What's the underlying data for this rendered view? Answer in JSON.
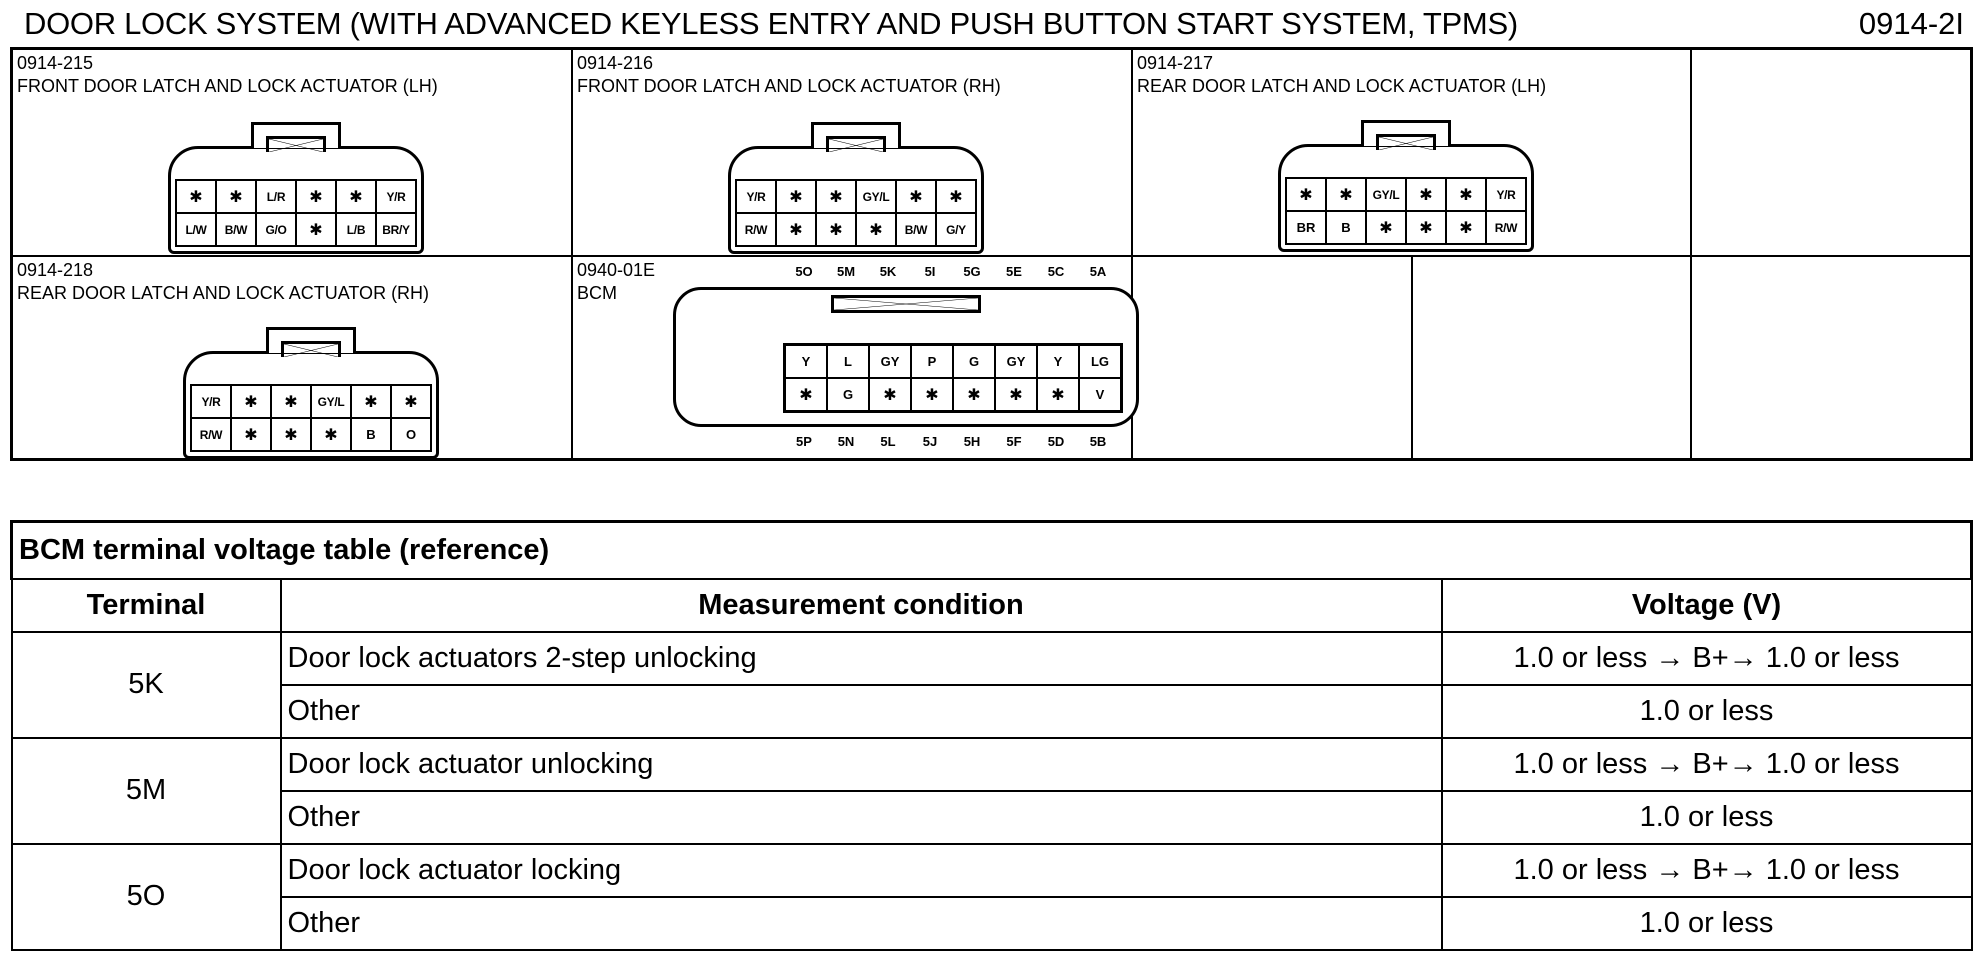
{
  "header": {
    "title": "DOOR LOCK SYSTEM (WITH ADVANCED KEYLESS ENTRY AND PUSH BUTTON START SYSTEM, TPMS)",
    "code": "0914-2I"
  },
  "connectors": [
    {
      "id": "0914-215",
      "name": "FRONT DOOR LATCH AND LOCK ACTUATOR (LH)",
      "rows": [
        [
          "*",
          "*",
          "L/R",
          "*",
          "*",
          "Y/R"
        ],
        [
          "L/W",
          "B/W",
          "G/O",
          "*",
          "L/B",
          "BR/Y"
        ]
      ]
    },
    {
      "id": "0914-216",
      "name": "FRONT DOOR LATCH AND LOCK ACTUATOR (RH)",
      "rows": [
        [
          "Y/R",
          "*",
          "*",
          "GY/L",
          "*",
          "*"
        ],
        [
          "R/W",
          "*",
          "*",
          "*",
          "B/W",
          "G/Y"
        ]
      ]
    },
    {
      "id": "0914-217",
      "name": "REAR DOOR LATCH AND LOCK ACTUATOR (LH)",
      "rows": [
        [
          "*",
          "*",
          "GY/L",
          "*",
          "*",
          "Y/R"
        ],
        [
          "BR",
          "B",
          "*",
          "*",
          "*",
          "R/W"
        ]
      ]
    },
    {
      "id": "0914-218",
      "name": "REAR DOOR LATCH AND LOCK ACTUATOR (RH)",
      "rows": [
        [
          "Y/R",
          "*",
          "*",
          "GY/L",
          "*",
          "*"
        ],
        [
          "R/W",
          "*",
          "*",
          "*",
          "B",
          "O"
        ]
      ]
    }
  ],
  "bcm": {
    "id": "0940-01E",
    "name": "BCM",
    "top_pins": [
      "5O",
      "5M",
      "5K",
      "5I",
      "5G",
      "5E",
      "5C",
      "5A"
    ],
    "bottom_pins": [
      "5P",
      "5N",
      "5L",
      "5J",
      "5H",
      "5F",
      "5D",
      "5B"
    ],
    "rows": [
      [
        "Y",
        "L",
        "GY",
        "P",
        "G",
        "GY",
        "Y",
        "LG"
      ],
      [
        "*",
        "G",
        "*",
        "*",
        "*",
        "*",
        "*",
        "V"
      ]
    ]
  },
  "table": {
    "title": "BCM terminal voltage table (reference)",
    "headers": [
      "Terminal",
      "Measurement condition",
      "Voltage (V)"
    ],
    "groups": [
      {
        "terminal": "5K",
        "rows": [
          {
            "condition": "Door lock actuators 2-step unlocking",
            "voltage": "1.0 or less → B+→ 1.0 or less"
          },
          {
            "condition": "Other",
            "voltage": "1.0 or less"
          }
        ]
      },
      {
        "terminal": "5M",
        "rows": [
          {
            "condition": "Door lock actuator unlocking",
            "voltage": "1.0 or less → B+→ 1.0 or less"
          },
          {
            "condition": "Other",
            "voltage": "1.0 or less"
          }
        ]
      },
      {
        "terminal": "5O",
        "rows": [
          {
            "condition": "Door lock actuator locking",
            "voltage": "1.0 or less → B+→ 1.0 or less"
          },
          {
            "condition": "Other",
            "voltage": "1.0 or less"
          }
        ]
      }
    ]
  }
}
